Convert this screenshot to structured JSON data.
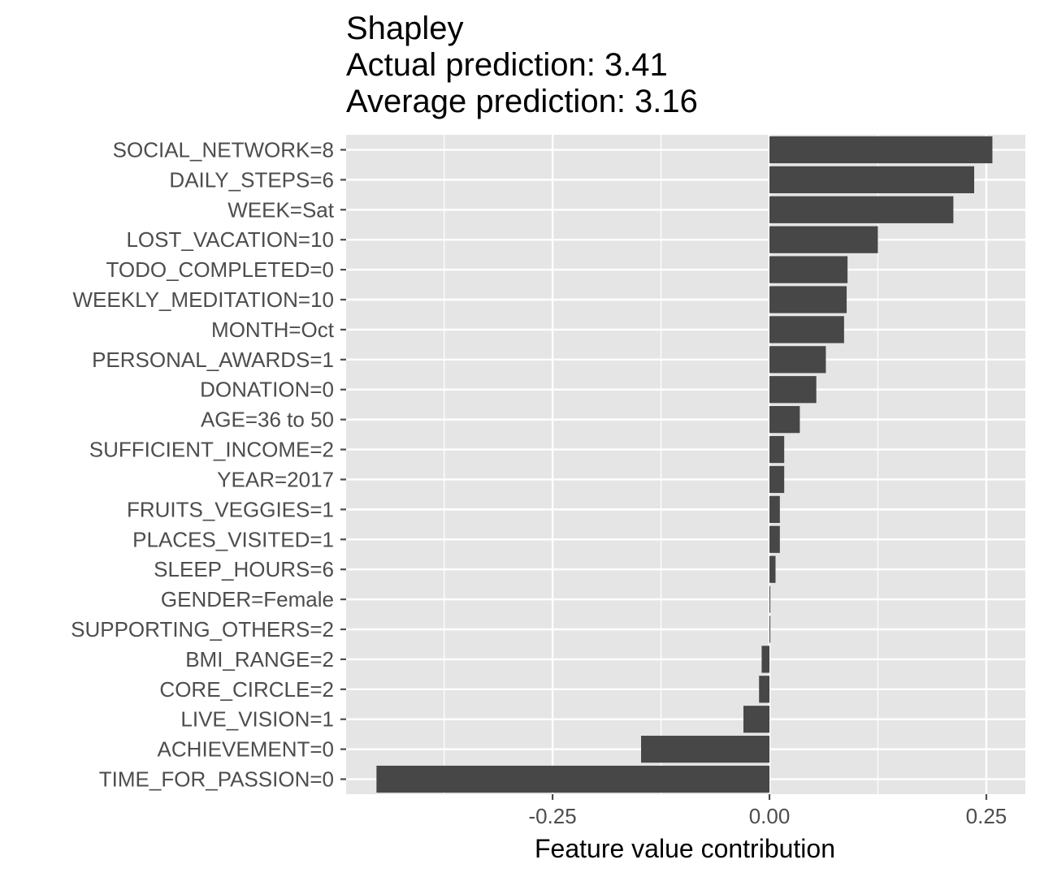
{
  "chart_data": {
    "type": "bar",
    "orientation": "horizontal",
    "title_lines": [
      "Shapley",
      "Actual prediction: 3.41",
      "Average prediction: 3.16"
    ],
    "xlabel": "Feature value contribution",
    "ylabel": "",
    "xlim": [
      -0.488,
      0.295
    ],
    "x_ticks": [
      -0.25,
      0.0,
      0.25
    ],
    "x_tick_labels": [
      "-0.25",
      "0.00",
      "0.25"
    ],
    "grid": true,
    "colors": {
      "bar": "#474747",
      "panel": "#e5e5e5",
      "grid": "#ffffff",
      "tick": "#4d4d4d",
      "text": "#000000"
    },
    "categories": [
      "SOCIAL_NETWORK=8",
      "DAILY_STEPS=6",
      "WEEK=Sat",
      "LOST_VACATION=10",
      "TODO_COMPLETED=0",
      "WEEKLY_MEDITATION=10",
      "MONTH=Oct",
      "PERSONAL_AWARDS=1",
      "DONATION=0",
      "AGE=36 to 50",
      "SUFFICIENT_INCOME=2",
      "YEAR=2017",
      "FRUITS_VEGGIES=1",
      "PLACES_VISITED=1",
      "SLEEP_HOURS=6",
      "GENDER=Female",
      "SUPPORTING_OTHERS=2",
      "BMI_RANGE=2",
      "CORE_CIRCLE=2",
      "LIVE_VISION=1",
      "ACHIEVEMENT=0",
      "TIME_FOR_PASSION=0"
    ],
    "values": [
      0.257,
      0.236,
      0.212,
      0.125,
      0.09,
      0.089,
      0.086,
      0.065,
      0.054,
      0.035,
      0.017,
      0.017,
      0.012,
      0.012,
      0.007,
      0.001,
      0.001,
      -0.009,
      -0.012,
      -0.03,
      -0.148,
      -0.453
    ]
  }
}
